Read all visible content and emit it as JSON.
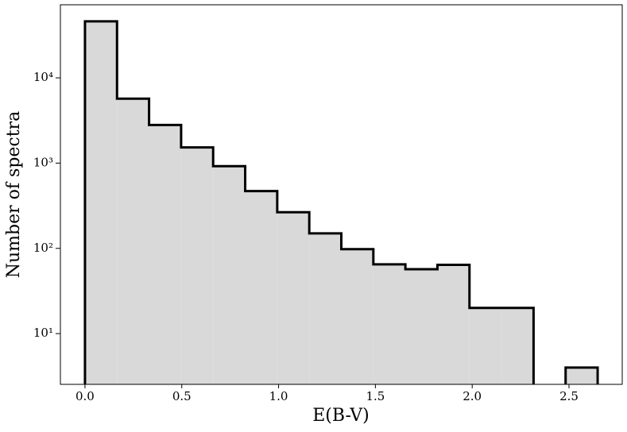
{
  "chart_data": {
    "type": "histogram",
    "bins": [
      0,
      0.1655,
      0.331,
      0.4965,
      0.662,
      0.8275,
      0.993,
      1.1585,
      1.324,
      1.4895,
      1.655,
      1.8205,
      1.986,
      2.1515,
      2.317,
      2.4825,
      2.648
    ],
    "values": [
      46000,
      5700,
      2800,
      1530,
      920,
      470,
      265,
      150,
      98,
      65,
      57,
      64,
      20,
      20,
      0,
      4
    ],
    "color": "#d9d9d9",
    "edgecolor": "#000000",
    "xlabel": "E(B-V)",
    "ylabel": "Number of spectra",
    "xlim": [
      -0.127,
      2.775
    ],
    "ylim": [
      2.54,
      72000
    ],
    "yscale": "log",
    "xticks": [
      {
        "value": 0,
        "label": "0.0"
      },
      0.5,
      {
        "value": 1,
        "label": "1.0"
      },
      1.5,
      {
        "value": 2,
        "label": "2.0"
      },
      2.5
    ],
    "yticks": [
      {
        "value": 10,
        "label": "10¹"
      },
      {
        "value": 100,
        "label": "10²"
      },
      {
        "value": 1000,
        "label": "10³"
      },
      {
        "value": 10000,
        "label": "10⁴"
      }
    ]
  }
}
